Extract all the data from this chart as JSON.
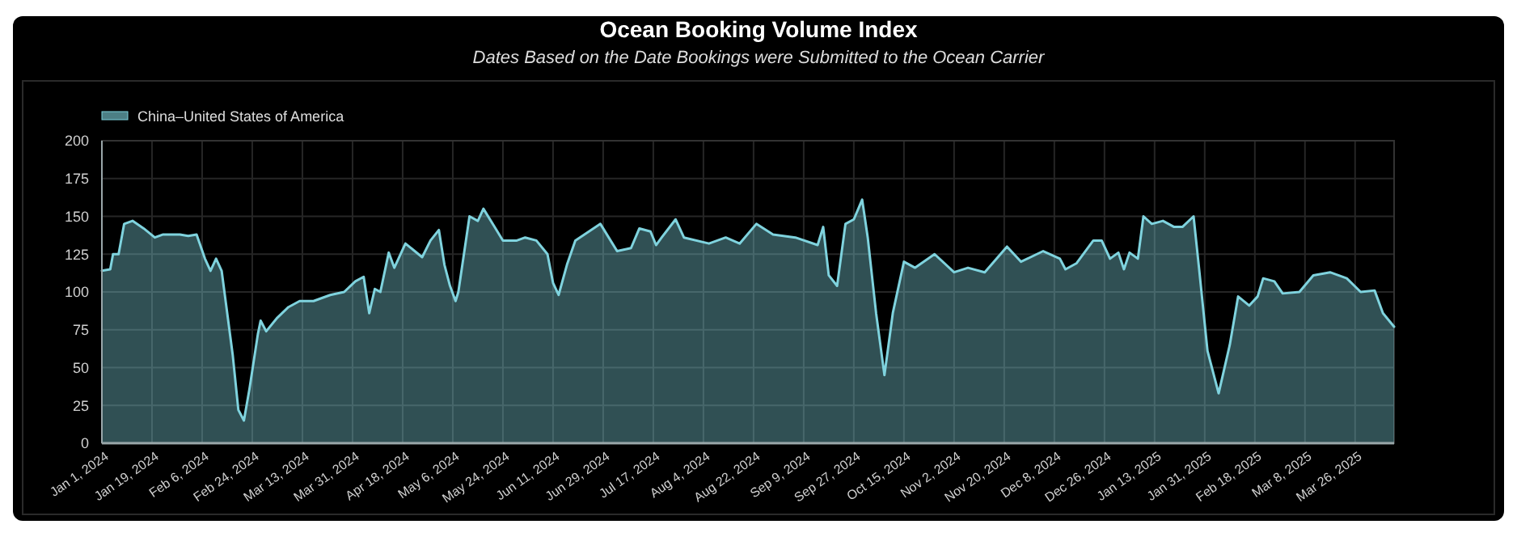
{
  "chart_data": {
    "type": "area",
    "title": "Ocean Booking Volume Index",
    "subtitle": "Dates Based on the Date Bookings were Submitted to the Ocean Carrier",
    "x": [
      "2024-01-01",
      "2024-01-04",
      "2024-01-05",
      "2024-01-07",
      "2024-01-09",
      "2024-01-12",
      "2024-01-16",
      "2024-01-20",
      "2024-01-23",
      "2024-01-29",
      "2024-02-01",
      "2024-02-04",
      "2024-02-07",
      "2024-02-09",
      "2024-02-11",
      "2024-02-13",
      "2024-02-17",
      "2024-02-19",
      "2024-02-21",
      "2024-02-23",
      "2024-02-26",
      "2024-02-27",
      "2024-02-29",
      "2024-03-04",
      "2024-03-08",
      "2024-03-12",
      "2024-03-17",
      "2024-03-23",
      "2024-03-28",
      "2024-04-01",
      "2024-04-04",
      "2024-04-06",
      "2024-04-08",
      "2024-04-10",
      "2024-04-13",
      "2024-04-15",
      "2024-04-19",
      "2024-04-25",
      "2024-04-28",
      "2024-05-01",
      "2024-05-03",
      "2024-05-05",
      "2024-05-07",
      "2024-05-08",
      "2024-05-12",
      "2024-05-15",
      "2024-05-17",
      "2024-05-21",
      "2024-05-24",
      "2024-05-29",
      "2024-06-01",
      "2024-06-05",
      "2024-06-09",
      "2024-06-11",
      "2024-06-13",
      "2024-06-16",
      "2024-06-19",
      "2024-06-28",
      "2024-07-04",
      "2024-07-09",
      "2024-07-12",
      "2024-07-16",
      "2024-07-18",
      "2024-07-20",
      "2024-07-25",
      "2024-07-28",
      "2024-08-06",
      "2024-08-12",
      "2024-08-17",
      "2024-08-23",
      "2024-08-29",
      "2024-09-06",
      "2024-09-14",
      "2024-09-16",
      "2024-09-18",
      "2024-09-21",
      "2024-09-24",
      "2024-09-27",
      "2024-09-30",
      "2024-10-02",
      "2024-10-05",
      "2024-10-08",
      "2024-10-11",
      "2024-10-15",
      "2024-10-19",
      "2024-10-26",
      "2024-11-02",
      "2024-11-07",
      "2024-11-13",
      "2024-11-21",
      "2024-11-26",
      "2024-12-04",
      "2024-12-10",
      "2024-12-12",
      "2024-12-16",
      "2024-12-22",
      "2024-12-25",
      "2024-12-28",
      "2024-12-31",
      "2025-01-02",
      "2025-01-04",
      "2025-01-07",
      "2025-01-09",
      "2025-01-12",
      "2025-01-16",
      "2025-01-20",
      "2025-01-23",
      "2025-01-27",
      "2025-01-29",
      "2025-02-01",
      "2025-02-05",
      "2025-02-09",
      "2025-02-12",
      "2025-02-16",
      "2025-02-19",
      "2025-02-21",
      "2025-02-25",
      "2025-02-28",
      "2025-03-06",
      "2025-03-11",
      "2025-03-17",
      "2025-03-23",
      "2025-03-28",
      "2025-04-02",
      "2025-04-05",
      "2025-04-09"
    ],
    "series": [
      {
        "name": "China–United States of America",
        "color": "#7fd3de",
        "values": [
          114,
          115,
          125,
          125,
          145,
          147,
          142,
          136,
          138,
          138,
          137,
          138,
          122,
          114,
          122,
          114,
          58,
          22,
          15,
          36,
          72,
          81,
          74,
          83,
          90,
          94,
          94,
          98,
          100,
          107,
          110,
          86,
          102,
          100,
          126,
          116,
          132,
          123,
          134,
          141,
          118,
          104,
          94,
          100,
          150,
          147,
          155,
          143,
          134,
          134,
          136,
          134,
          125,
          106,
          98,
          118,
          134,
          145,
          127,
          129,
          142,
          140,
          131,
          136,
          148,
          136,
          132,
          136,
          132,
          145,
          138,
          136,
          131,
          143,
          111,
          104,
          145,
          148,
          161,
          136,
          86,
          45,
          86,
          120,
          116,
          125,
          113,
          116,
          113,
          130,
          120,
          127,
          122,
          115,
          119,
          134,
          134,
          122,
          126,
          115,
          126,
          122,
          150,
          145,
          147,
          143,
          143,
          150,
          115,
          61,
          33,
          65,
          97,
          91,
          97,
          109,
          107,
          99,
          100,
          111,
          113,
          109,
          100,
          101,
          86,
          77
        ]
      }
    ],
    "xlim": [
      "2024-01-01",
      "2025-04-09"
    ],
    "xticks": [
      {
        "value": "2024-01-01",
        "label": "Jan 1, 2024"
      },
      {
        "value": "2024-01-19",
        "label": "Jan 19, 2024"
      },
      {
        "value": "2024-02-06",
        "label": "Feb 6, 2024"
      },
      {
        "value": "2024-02-24",
        "label": "Feb 24, 2024"
      },
      {
        "value": "2024-03-13",
        "label": "Mar 13, 2024"
      },
      {
        "value": "2024-03-31",
        "label": "Mar 31, 2024"
      },
      {
        "value": "2024-04-18",
        "label": "Apr 18, 2024"
      },
      {
        "value": "2024-05-06",
        "label": "May 6, 2024"
      },
      {
        "value": "2024-05-24",
        "label": "May 24, 2024"
      },
      {
        "value": "2024-06-11",
        "label": "Jun 11, 2024"
      },
      {
        "value": "2024-06-29",
        "label": "Jun 29, 2024"
      },
      {
        "value": "2024-07-17",
        "label": "Jul 17, 2024"
      },
      {
        "value": "2024-08-04",
        "label": "Aug 4, 2024"
      },
      {
        "value": "2024-08-22",
        "label": "Aug 22, 2024"
      },
      {
        "value": "2024-09-09",
        "label": "Sep 9, 2024"
      },
      {
        "value": "2024-09-27",
        "label": "Sep 27, 2024"
      },
      {
        "value": "2024-10-15",
        "label": "Oct 15, 2024"
      },
      {
        "value": "2024-11-02",
        "label": "Nov 2, 2024"
      },
      {
        "value": "2024-11-20",
        "label": "Nov 20, 2024"
      },
      {
        "value": "2024-12-08",
        "label": "Dec 8, 2024"
      },
      {
        "value": "2024-12-26",
        "label": "Dec 26, 2024"
      },
      {
        "value": "2025-01-13",
        "label": "Jan 13, 2025"
      },
      {
        "value": "2025-01-31",
        "label": "Jan 31, 2025"
      },
      {
        "value": "2025-02-18",
        "label": "Feb 18, 2025"
      },
      {
        "value": "2025-03-08",
        "label": "Mar 8, 2025"
      },
      {
        "value": "2025-03-26",
        "label": "Mar 26, 2025"
      }
    ],
    "ylim": [
      0,
      200
    ],
    "yticks": [
      0,
      25,
      50,
      75,
      100,
      125,
      150,
      175,
      200
    ],
    "grid": true,
    "legend": "top left"
  }
}
